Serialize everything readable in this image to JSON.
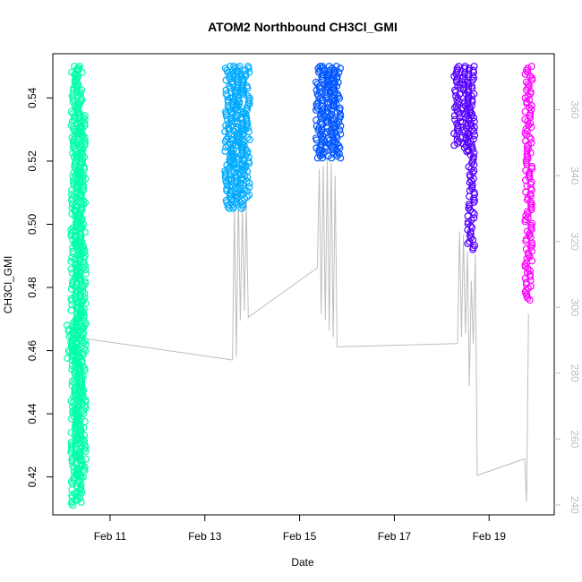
{
  "chart_data": {
    "type": "scatter",
    "title": "ATOM2 Northbound CH3Cl_GMI",
    "xlabel": "Date",
    "ylabel": "CH3Cl_GMI",
    "x_axis": {
      "type": "date",
      "range": [
        "2017-02-09 19:00",
        "2017-02-20 09:00"
      ],
      "ticks": [
        {
          "value": "2017-02-11",
          "label": "Feb 11"
        },
        {
          "value": "2017-02-13",
          "label": "Feb 13"
        },
        {
          "value": "2017-02-15",
          "label": "Feb 15"
        },
        {
          "value": "2017-02-17",
          "label": "Feb 17"
        },
        {
          "value": "2017-02-19",
          "label": "Feb 19"
        }
      ]
    },
    "y_axis_left": {
      "range": [
        0.408,
        0.554
      ],
      "ticks": [
        0.42,
        0.44,
        0.46,
        0.48,
        0.5,
        0.52,
        0.54
      ],
      "tick_labels": [
        "0.42",
        "0.44",
        "0.46",
        "0.48",
        "0.50",
        "0.52",
        "0.54"
      ]
    },
    "y_axis_right": {
      "range": [
        237,
        377
      ],
      "ticks": [
        240,
        260,
        280,
        300,
        320,
        340,
        360
      ],
      "tick_labels": [
        "240",
        "260",
        "280",
        "300",
        "320",
        "340",
        "360"
      ],
      "color": "#bebebe"
    },
    "grid": false,
    "series": [
      {
        "kind": "points",
        "color": "#00ffaa",
        "segments": [
          {
            "x": "2017-02-10 04:00",
            "y": [
              0.457,
              0.468
            ]
          },
          {
            "x": "2017-02-10 06:00",
            "y": [
              0.411,
              0.55
            ]
          },
          {
            "x": "2017-02-10 08:00",
            "y": [
              0.412,
              0.55
            ]
          },
          {
            "x": "2017-02-10 10:00",
            "y": [
              0.42,
              0.535
            ]
          }
        ]
      },
      {
        "kind": "points",
        "color": "#00aaff",
        "segments": [
          {
            "x": "2017-02-13 12:00",
            "y": [
              0.505,
              0.55
            ]
          },
          {
            "x": "2017-02-13 15:00",
            "y": [
              0.505,
              0.55
            ]
          },
          {
            "x": "2017-02-13 18:00",
            "y": [
              0.505,
              0.55
            ]
          },
          {
            "x": "2017-02-13 21:00",
            "y": [
              0.508,
              0.55
            ]
          }
        ]
      },
      {
        "kind": "points",
        "color": "#0055ff",
        "segments": [
          {
            "x": "2017-02-15 10:00",
            "y": [
              0.521,
              0.55
            ]
          },
          {
            "x": "2017-02-15 13:00",
            "y": [
              0.521,
              0.55
            ]
          },
          {
            "x": "2017-02-15 16:00",
            "y": [
              0.521,
              0.55
            ]
          },
          {
            "x": "2017-02-15 19:00",
            "y": [
              0.521,
              0.55
            ]
          }
        ]
      },
      {
        "kind": "points",
        "color": "#5500ff",
        "segments": [
          {
            "x": "2017-02-18 08:00",
            "y": [
              0.525,
              0.55
            ]
          },
          {
            "x": "2017-02-18 12:00",
            "y": [
              0.523,
              0.55
            ]
          },
          {
            "x": "2017-02-18 15:00",
            "y": [
              0.492,
              0.55
            ]
          }
        ]
      },
      {
        "kind": "points",
        "color": "#ff00ff",
        "segments": [
          {
            "x": "2017-02-19 20:00",
            "y": [
              0.476,
              0.55
            ]
          }
        ]
      },
      {
        "kind": "line",
        "axis": "right",
        "color": "#bebebe",
        "points": [
          {
            "x": "2017-02-10 06:00",
            "y": 291
          },
          {
            "x": "2017-02-13 14:00",
            "y": 284
          },
          {
            "x": "2017-02-13 15:00",
            "y": 330
          },
          {
            "x": "2017-02-13 16:00",
            "y": 285
          },
          {
            "x": "2017-02-13 17:00",
            "y": 335
          },
          {
            "x": "2017-02-13 18:00",
            "y": 296
          },
          {
            "x": "2017-02-13 19:00",
            "y": 330
          },
          {
            "x": "2017-02-13 20:00",
            "y": 299
          },
          {
            "x": "2017-02-13 21:00",
            "y": 332
          },
          {
            "x": "2017-02-13 22:00",
            "y": 297
          },
          {
            "x": "2017-02-15 09:00",
            "y": 312
          },
          {
            "x": "2017-02-15 10:00",
            "y": 342
          },
          {
            "x": "2017-02-15 11:00",
            "y": 298
          },
          {
            "x": "2017-02-15 12:00",
            "y": 343
          },
          {
            "x": "2017-02-15 13:00",
            "y": 296
          },
          {
            "x": "2017-02-15 14:00",
            "y": 345
          },
          {
            "x": "2017-02-15 15:00",
            "y": 293
          },
          {
            "x": "2017-02-15 16:00",
            "y": 344
          },
          {
            "x": "2017-02-15 17:00",
            "y": 291
          },
          {
            "x": "2017-02-15 18:00",
            "y": 340
          },
          {
            "x": "2017-02-15 19:00",
            "y": 288
          },
          {
            "x": "2017-02-18 08:00",
            "y": 289
          },
          {
            "x": "2017-02-18 09:00",
            "y": 323
          },
          {
            "x": "2017-02-18 10:00",
            "y": 291
          },
          {
            "x": "2017-02-18 11:00",
            "y": 322
          },
          {
            "x": "2017-02-18 12:00",
            "y": 292
          },
          {
            "x": "2017-02-18 13:00",
            "y": 317
          },
          {
            "x": "2017-02-18 14:00",
            "y": 276
          },
          {
            "x": "2017-02-18 15:00",
            "y": 308
          },
          {
            "x": "2017-02-18 16:00",
            "y": 289
          },
          {
            "x": "2017-02-18 17:00",
            "y": 316
          },
          {
            "x": "2017-02-18 18:00",
            "y": 249
          },
          {
            "x": "2017-02-19 18:00",
            "y": 254
          },
          {
            "x": "2017-02-19 19:00",
            "y": 241
          },
          {
            "x": "2017-02-19 20:00",
            "y": 298
          }
        ]
      }
    ]
  }
}
